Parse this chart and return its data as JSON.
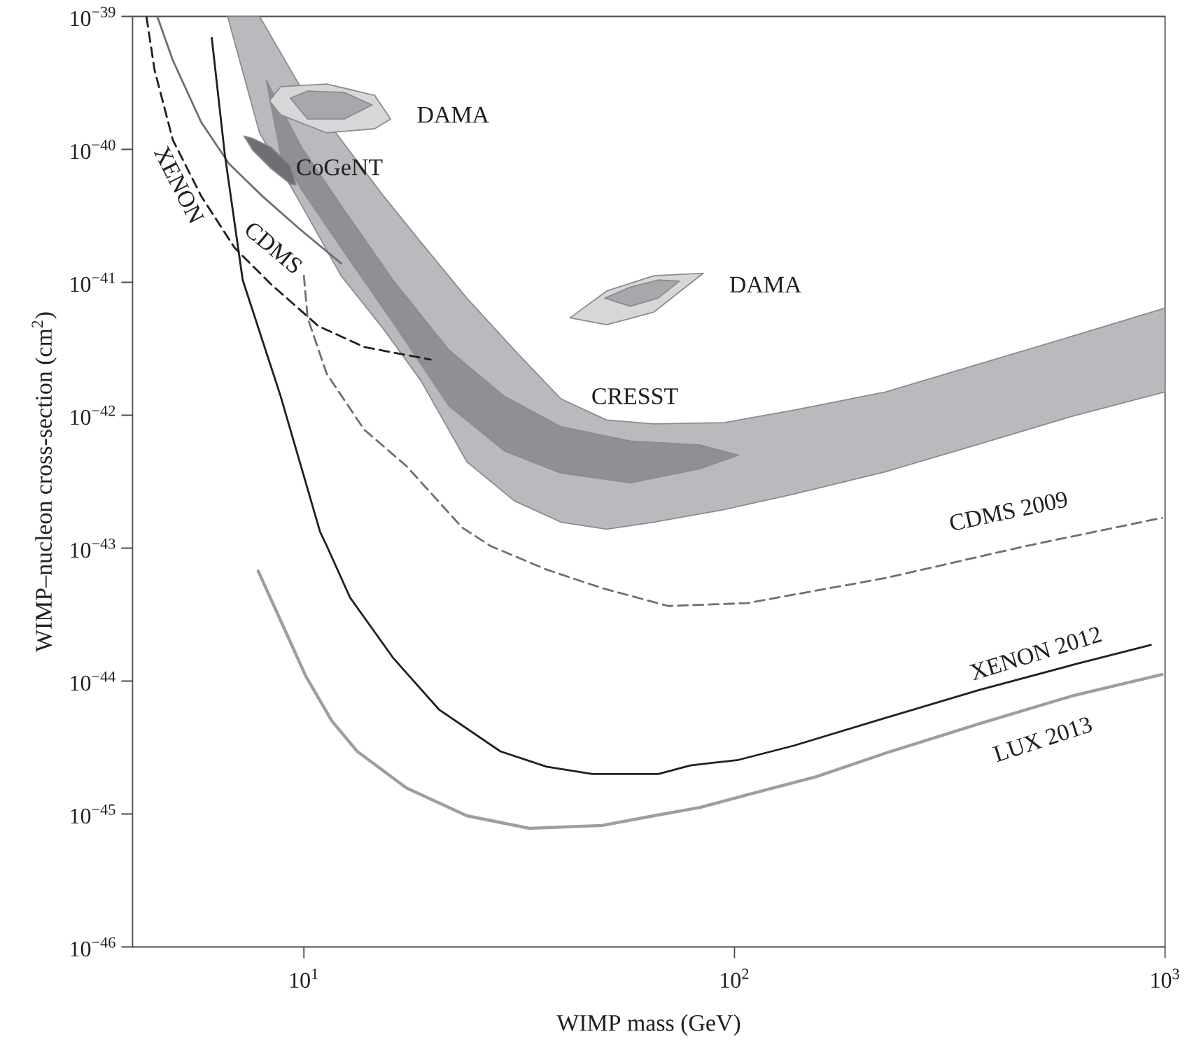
{
  "chart_data": {
    "type": "line",
    "xlabel": "WIMP mass (GeV)",
    "ylabel": "WIMP–nucleon cross-section (cm$^{2}$)",
    "log": "xy",
    "xlim": [
      4.0,
      1000
    ],
    "ylim": [
      1e-46,
      1e-39
    ],
    "xticks": [
      {
        "value": 10,
        "label": "10$^{1}$"
      },
      {
        "value": 100,
        "label": "10$^{2}$"
      },
      {
        "value": 1000,
        "label": "10$^{3}$"
      }
    ],
    "yticks": [
      {
        "value": 1e-46,
        "label": "10$^{−46}$"
      },
      {
        "value": 1e-45,
        "label": "10$^{−45}$"
      },
      {
        "value": 1e-44,
        "label": "10$^{−44}$"
      },
      {
        "value": 1e-43,
        "label": "10$^{−43}$"
      },
      {
        "value": 1e-42,
        "label": "10$^{−42}$"
      },
      {
        "value": 1e-41,
        "label": "10$^{−41}$"
      },
      {
        "value": 1e-40,
        "label": "10$^{−40}$"
      },
      {
        "value": 1e-39,
        "label": "10$^{−39}$"
      }
    ],
    "series": [
      {
        "type": "area",
        "name": "CRESST",
        "color": "#b9babd",
        "x": [
          6.65,
          7.89,
          9.73,
          12.2,
          15.3,
          18.7,
          23.9,
          30.8,
          39.5,
          50.5,
          65.0,
          94.6,
          137,
          225,
          372,
          614,
          1000,
          1000,
          614,
          372,
          225,
          137,
          94.6,
          65.0,
          50.5,
          39.5,
          30.8,
          23.9,
          18.7,
          15.3,
          12.2,
          9.73,
          7.89
        ],
        "values": [
          1e-39,
          1e-39,
          3.1e-40,
          1.18e-40,
          4.46e-41,
          2e-41,
          7.6e-42,
          3.1e-42,
          1.33e-42,
          9.2e-43,
          8.6e-43,
          8.8e-43,
          1.09e-42,
          1.5e-42,
          2.44e-42,
          3.96e-42,
          6.4e-42,
          1.5e-42,
          9.9e-43,
          6.1e-43,
          3.77e-43,
          2.55e-43,
          1.95e-43,
          1.57e-43,
          1.39e-43,
          1.57e-43,
          2.27e-43,
          4.47e-43,
          1.82e-42,
          4.46e-42,
          1.12e-41,
          4.15e-41,
          1.33e-40
        ]
      },
      {
        "type": "area",
        "color": "#8f9093",
        "x": [
          8.18,
          9.87,
          12.4,
          16.1,
          21.7,
          29.2,
          39.5,
          57.3,
          83.2,
          102,
          83.2,
          57.3,
          39.5,
          29.2,
          21.7,
          16.1,
          12.4,
          9.87,
          8.83
        ],
        "values": [
          3.3e-40,
          1.04e-40,
          3.5e-41,
          1.04e-41,
          3.1e-42,
          1.39e-42,
          8.2e-43,
          6.4e-43,
          5.97e-43,
          5e-43,
          3.96e-43,
          3.1e-43,
          3.67e-43,
          5.4e-43,
          1.18e-42,
          5e-42,
          1.69e-41,
          5e-41,
          9.2e-41
        ]
      },
      {
        "type": "area",
        "name": "DAMA",
        "color": "#d6d7d9",
        "x": [
          8.32,
          8.83,
          11.3,
          14.6,
          15.9,
          14.6,
          11.3,
          8.83
        ],
        "values": [
          2.32e-40,
          2.96e-40,
          3.1e-40,
          2.55e-40,
          1.69e-40,
          1.43e-40,
          1.33e-40,
          1.82e-40
        ]
      },
      {
        "type": "area",
        "color": "#a7a8ab",
        "x": [
          9.3,
          10.2,
          12.4,
          14.4,
          12.4,
          10.2
        ],
        "values": [
          2.43e-40,
          2.75e-40,
          2.68e-40,
          2.16e-40,
          1.69e-40,
          1.69e-40
        ]
      },
      {
        "type": "area",
        "name": "DAMA",
        "color": "#d6d7d9",
        "x": [
          41.5,
          50.5,
          65.0,
          84.6,
          65.0,
          50.5
        ],
        "values": [
          5.4e-42,
          8.6e-42,
          1.12e-41,
          1.17e-41,
          5.97e-42,
          4.8e-42
        ]
      },
      {
        "type": "area",
        "color": "#a7a8ab",
        "x": [
          50.0,
          57.3,
          66.5,
          74.5,
          66.5,
          57.3
        ],
        "values": [
          7.6e-42,
          9.2e-42,
          1.04e-41,
          1.02e-41,
          7.6e-42,
          6.6e-42
        ]
      },
      {
        "type": "area",
        "name": "CoGeNT",
        "color": "#6e6f72",
        "x": [
          7.26,
          7.6,
          8.38,
          9.3,
          9.58,
          9.3,
          8.38,
          7.6
        ],
        "values": [
          1.26e-40,
          1.21e-40,
          1.04e-40,
          7.6e-41,
          5.4e-41,
          5.5e-41,
          7.2e-41,
          9.9e-41
        ]
      },
      {
        "name": "XENON",
        "color": "#231f20",
        "line_style": "dashed",
        "x": [
          4.31,
          4.5,
          4.96,
          5.77,
          6.9,
          8.38,
          10.8,
          13.8,
          19.7
        ],
        "values": [
          9.9e-40,
          3.95e-40,
          1.18e-40,
          4.47e-41,
          1.82e-41,
          9.7e-42,
          4.69e-42,
          3.26e-42,
          2.62e-42
        ]
      },
      {
        "name": "CDMS",
        "color": "#6e6f72",
        "line_style": "solid",
        "x": [
          4.57,
          4.96,
          5.77,
          6.7,
          8.0,
          9.73,
          12.2
        ],
        "values": [
          9.9e-40,
          4.69e-40,
          1.61e-40,
          7.8e-41,
          4.46e-41,
          2.55e-41,
          1.39e-41
        ]
      },
      {
        "name": "CDMS 2009",
        "color": "#6e6f72",
        "line_style": "dashed",
        "x": [
          10.0,
          10.2,
          11.3,
          13.8,
          17.3,
          23.3,
          27.1,
          36.6,
          49.3,
          70.2,
          107,
          225,
          477,
          984
        ],
        "values": [
          1.12e-41,
          5.4e-42,
          2.05e-42,
          7.8e-43,
          4.15e-43,
          1.43e-43,
          1.04e-43,
          6.9e-44,
          5e-44,
          3.67e-44,
          3.86e-44,
          5.97e-44,
          1.04e-43,
          1.69e-43
        ]
      },
      {
        "name": "XENON 2012",
        "color": "#231f20",
        "line_style": "solid",
        "x": [
          6.11,
          6.55,
          7.21,
          8.83,
          10.9,
          11.3,
          12.8,
          16.1,
          20.6,
          28.6,
          36.6,
          46.8,
          66.5,
          79.0,
          102,
          137,
          225,
          372,
          614,
          927
        ],
        "values": [
          6.9e-40,
          9.2e-41,
          1.04e-41,
          1.39e-42,
          1.33e-43,
          1.04e-43,
          4.25e-44,
          1.5e-44,
          6.1e-45,
          2.96e-45,
          2.27e-45,
          2e-45,
          2e-45,
          2.32e-45,
          2.55e-45,
          3.26e-45,
          5.3e-45,
          8.6e-45,
          1.33e-44,
          1.87e-44
        ]
      },
      {
        "name": "LUX 2013",
        "color": "#9d9ea1",
        "line_style": "solid",
        "x": [
          7.83,
          9.03,
          10.1,
          11.6,
          13.3,
          17.3,
          23.9,
          33.4,
          49.3,
          65.0,
          83.2,
          106.6,
          155,
          225,
          372,
          614,
          984
        ],
        "values": [
          6.73e-44,
          2.43e-44,
          1.09e-44,
          5.04e-45,
          2.96e-45,
          1.57e-45,
          9.7e-46,
          7.8e-46,
          8.2e-46,
          9.7e-46,
          1.12e-45,
          1.39e-45,
          1.91e-45,
          2.88e-45,
          4.8e-45,
          7.8e-45,
          1.12e-44
        ]
      }
    ]
  }
}
